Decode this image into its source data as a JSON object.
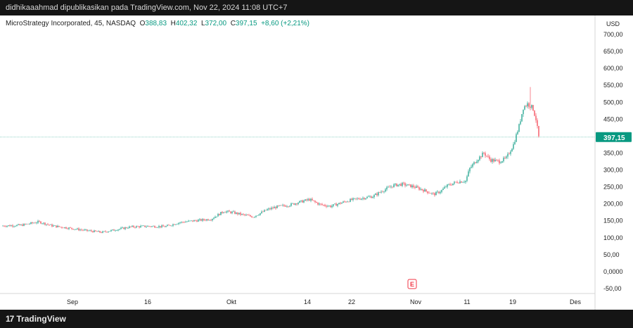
{
  "header": {
    "publisher_line": "didhikaaahmad dipublikasikan pada TradingView.com, Nov 22, 2024 11:08 UTC+7"
  },
  "legend": {
    "symbol": "MicroStrategy Incorporated, 45, NASDAQ",
    "open_label": "O",
    "open_value": "388,83",
    "high_label": "H",
    "high_value": "402,32",
    "low_label": "L",
    "low_value": "372,00",
    "close_label": "C",
    "close_value": "397,15",
    "change": "+8,60 (+2,21%)"
  },
  "footer": {
    "brand": "TradingView",
    "logo_mark": "17"
  },
  "chart_data": {
    "type": "candlestick",
    "currency": "USD",
    "title": "MicroStrategy Incorporated, 45, NASDAQ",
    "ylim": [
      -60,
      730
    ],
    "y_ticks": [
      700,
      650,
      600,
      550,
      500,
      450,
      400,
      350,
      300,
      250,
      200,
      150,
      100,
      50,
      0,
      -50
    ],
    "y_tick_labels": [
      "700,00",
      "650,00",
      "600,00",
      "550,00",
      "500,00",
      "450,00",
      "400,00",
      "350,00",
      "300,00",
      "250,00",
      "200,00",
      "150,00",
      "100,00",
      "50,00",
      "0,0000",
      "-50,00"
    ],
    "x_ticks": [
      {
        "label": "Sep",
        "t": 103
      },
      {
        "label": "16",
        "t": 210
      },
      {
        "label": "Okt",
        "t": 329
      },
      {
        "label": "14",
        "t": 437
      },
      {
        "label": "22",
        "t": 500
      },
      {
        "label": "Nov",
        "t": 591
      },
      {
        "label": "11",
        "t": 664
      },
      {
        "label": "19",
        "t": 729
      },
      {
        "label": "Des",
        "t": 818
      }
    ],
    "x_range": [
      0,
      846
    ],
    "last_price": 397.15,
    "last_price_label": "397,15",
    "earnings_marker": {
      "label": "E",
      "t": 586
    },
    "price_path": [
      [
        0,
        135
      ],
      [
        30,
        137
      ],
      [
        55,
        147
      ],
      [
        75,
        135
      ],
      [
        100,
        128
      ],
      [
        120,
        122
      ],
      [
        145,
        116
      ],
      [
        165,
        124
      ],
      [
        185,
        132
      ],
      [
        210,
        134
      ],
      [
        235,
        133
      ],
      [
        255,
        145
      ],
      [
        275,
        150
      ],
      [
        300,
        155
      ],
      [
        318,
        178
      ],
      [
        330,
        175
      ],
      [
        345,
        168
      ],
      [
        360,
        162
      ],
      [
        380,
        183
      ],
      [
        395,
        192
      ],
      [
        410,
        196
      ],
      [
        425,
        205
      ],
      [
        440,
        213
      ],
      [
        455,
        198
      ],
      [
        470,
        193
      ],
      [
        485,
        203
      ],
      [
        500,
        212
      ],
      [
        515,
        217
      ],
      [
        530,
        222
      ],
      [
        545,
        240
      ],
      [
        560,
        255
      ],
      [
        572,
        258
      ],
      [
        588,
        251
      ],
      [
        603,
        240
      ],
      [
        617,
        228
      ],
      [
        627,
        238
      ],
      [
        635,
        253
      ],
      [
        650,
        265
      ],
      [
        662,
        268
      ],
      [
        668,
        305
      ],
      [
        678,
        330
      ],
      [
        688,
        350
      ],
      [
        697,
        330
      ],
      [
        710,
        325
      ],
      [
        720,
        335
      ],
      [
        730,
        375
      ],
      [
        738,
        430
      ],
      [
        744,
        485
      ],
      [
        750,
        495
      ],
      [
        754,
        490
      ],
      [
        758,
        480
      ],
      [
        762,
        450
      ],
      [
        766,
        397.15
      ]
    ]
  }
}
